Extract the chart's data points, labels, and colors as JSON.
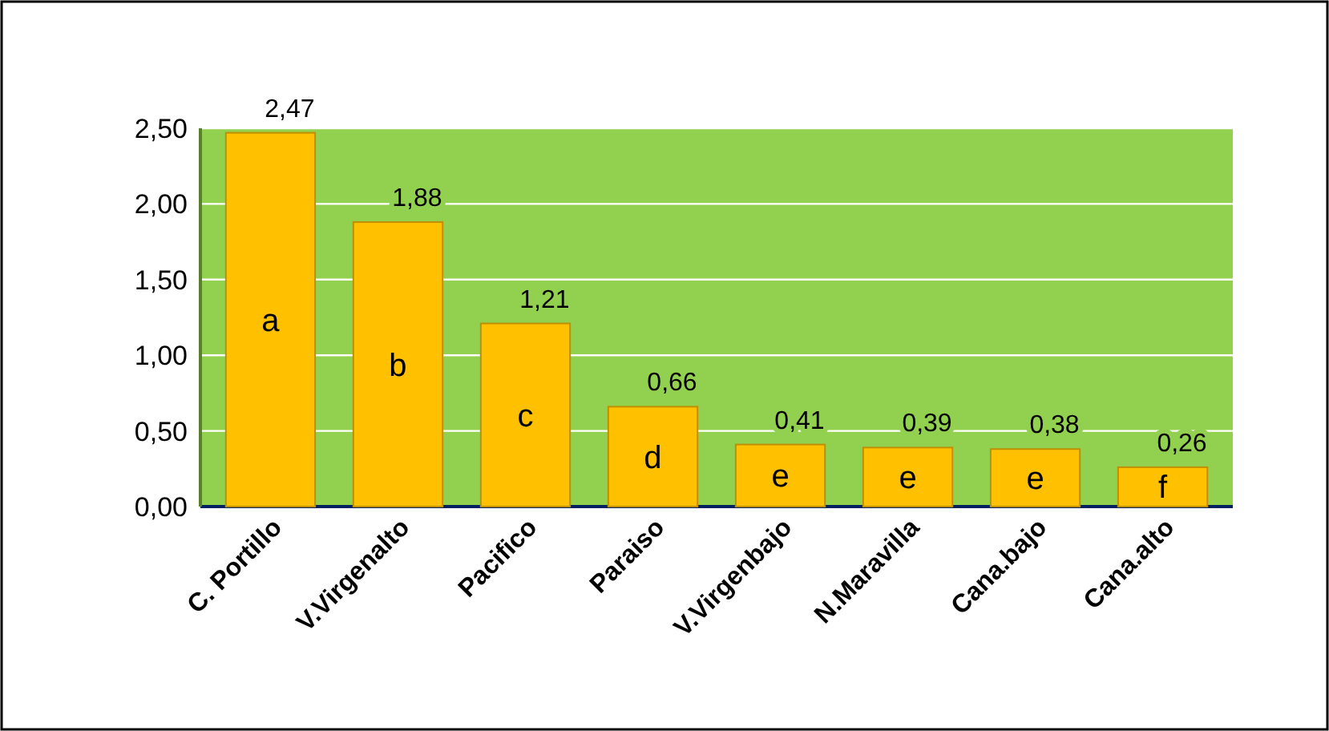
{
  "chart_data": {
    "type": "bar",
    "categories": [
      "C. Portillo",
      "V.Virgenalto",
      "Pacifico",
      "Paraiso",
      "V.Virgenbajo",
      "N.Maravilla",
      "Cana.bajo",
      "Cana.alto"
    ],
    "values": [
      2.47,
      1.88,
      1.21,
      0.66,
      0.41,
      0.39,
      0.38,
      0.26
    ],
    "value_labels": [
      "2,47",
      "1,88",
      "1,21",
      "0,66",
      "0,41",
      "0,39",
      "0,38",
      "0,26"
    ],
    "color": "#ffc000",
    "ylim": [
      0,
      2.5
    ],
    "yticks": [
      {
        "value": 0,
        "label": "0,00"
      },
      {
        "value": 0.5,
        "label": "0,50"
      },
      {
        "value": 1,
        "label": "1,00"
      },
      {
        "value": 1.5,
        "label": "1,50"
      },
      {
        "value": 2,
        "label": "2,00"
      },
      {
        "value": 2.5,
        "label": "2,50"
      }
    ],
    "grid": "y",
    "annotations": [
      "a",
      "b",
      "c",
      "d",
      "e",
      "e",
      "e",
      "f"
    ]
  }
}
